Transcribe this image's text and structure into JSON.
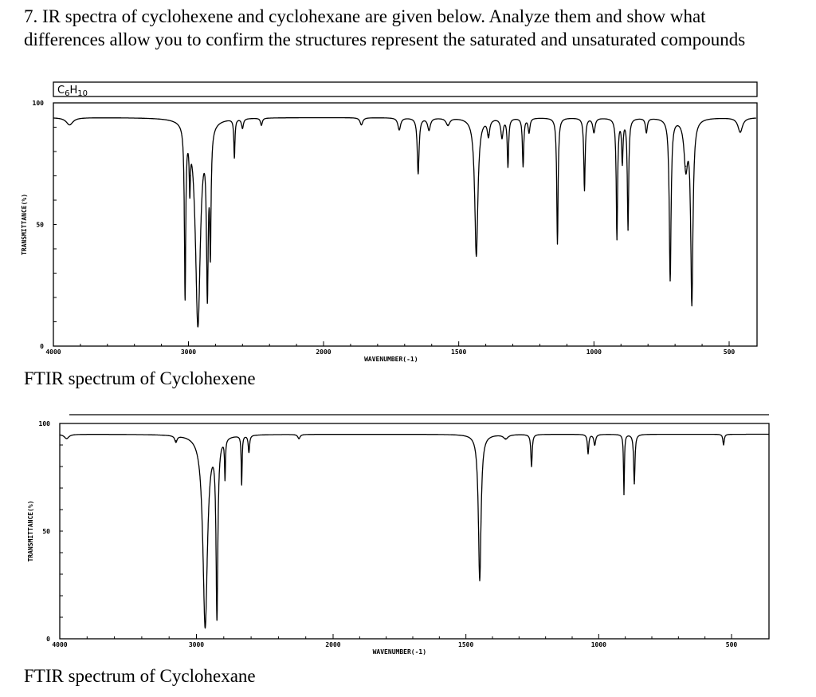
{
  "question": "7.  IR spectra of cyclohexene and cyclohexane are given below. Analyze them and show what differences allow you to confirm the structures represent the saturated and unsaturated compounds",
  "chart_data": [
    {
      "type": "line",
      "id": "cyclohexene",
      "title": "C6H10",
      "title_main": "C",
      "title_sub1": "6",
      "title_mid": "H",
      "title_sub2": "10",
      "caption": "FTIR spectrum of Cyclohexene",
      "xlabel": "WAVENUMBER(-1)",
      "ylabel": "TRANSMITTANCE(%)",
      "xlim": [
        4000,
        400
      ],
      "ylim": [
        0,
        100
      ],
      "xticks": [
        "4000",
        "3000",
        "2000",
        "1500",
        "1000",
        "500"
      ],
      "xtick_values": [
        4000,
        3000,
        2000,
        1500,
        1000,
        500
      ],
      "yticks": [
        "100",
        "50",
        "0"
      ],
      "ytick_values": [
        100,
        50,
        0
      ],
      "baseline": 94,
      "peaks": [
        {
          "wn": 3880,
          "T": 91,
          "w": 30
        },
        {
          "wn": 3025,
          "T": 20,
          "w": 6
        },
        {
          "wn": 2990,
          "T": 70,
          "w": 5
        },
        {
          "wn": 2930,
          "T": 8,
          "w": 22
        },
        {
          "wn": 2860,
          "T": 20,
          "w": 8
        },
        {
          "wn": 2838,
          "T": 40,
          "w": 6
        },
        {
          "wn": 2660,
          "T": 78,
          "w": 5
        },
        {
          "wn": 2600,
          "T": 90,
          "w": 8
        },
        {
          "wn": 2460,
          "T": 91,
          "w": 8
        },
        {
          "wn": 1860,
          "T": 91,
          "w": 6
        },
        {
          "wn": 1720,
          "T": 89,
          "w": 6
        },
        {
          "wn": 1650,
          "T": 71,
          "w": 4
        },
        {
          "wn": 1610,
          "T": 89,
          "w": 6
        },
        {
          "wn": 1540,
          "T": 91,
          "w": 8
        },
        {
          "wn": 1435,
          "T": 37,
          "w": 7
        },
        {
          "wn": 1390,
          "T": 87,
          "w": 5
        },
        {
          "wn": 1340,
          "T": 86,
          "w": 5
        },
        {
          "wn": 1318,
          "T": 74,
          "w": 3
        },
        {
          "wn": 1262,
          "T": 74,
          "w": 3
        },
        {
          "wn": 1240,
          "T": 88,
          "w": 4
        },
        {
          "wn": 1135,
          "T": 42,
          "w": 3
        },
        {
          "wn": 1035,
          "T": 64,
          "w": 3
        },
        {
          "wn": 1000,
          "T": 88,
          "w": 5
        },
        {
          "wn": 915,
          "T": 44,
          "w": 3
        },
        {
          "wn": 895,
          "T": 76,
          "w": 3
        },
        {
          "wn": 874,
          "T": 48,
          "w": 3
        },
        {
          "wn": 806,
          "T": 88,
          "w": 4
        },
        {
          "wn": 718,
          "T": 27,
          "w": 4
        },
        {
          "wn": 660,
          "T": 74,
          "w": 8
        },
        {
          "wn": 638,
          "T": 17,
          "w": 5
        },
        {
          "wn": 459,
          "T": 88,
          "w": 10
        }
      ]
    },
    {
      "type": "line",
      "id": "cyclohexane",
      "caption": "FTIR spectrum of Cyclohexane",
      "xlabel": "WAVENUMBER(-1)",
      "ylabel": "TRANSMITTANCE(%)",
      "xlim": [
        4000,
        360
      ],
      "ylim": [
        0,
        100
      ],
      "xticks": [
        "4000",
        "3000",
        "2000",
        "1500",
        "1000",
        "500"
      ],
      "xtick_values": [
        4000,
        3000,
        2000,
        1500,
        1000,
        500
      ],
      "yticks": [
        "100",
        "50",
        "0"
      ],
      "ytick_values": [
        100,
        50,
        0
      ],
      "baseline": 95,
      "peaks": [
        {
          "wn": 3950,
          "T": 93,
          "w": 20
        },
        {
          "wn": 3150,
          "T": 92,
          "w": 10
        },
        {
          "wn": 2936,
          "T": 5,
          "w": 20
        },
        {
          "wn": 2850,
          "T": 9,
          "w": 8
        },
        {
          "wn": 2791,
          "T": 76,
          "w": 4
        },
        {
          "wn": 2669,
          "T": 72,
          "w": 4
        },
        {
          "wn": 2616,
          "T": 87,
          "w": 6
        },
        {
          "wn": 2250,
          "T": 93,
          "w": 10
        },
        {
          "wn": 1448,
          "T": 27,
          "w": 6
        },
        {
          "wn": 1350,
          "T": 93,
          "w": 10
        },
        {
          "wn": 1253,
          "T": 80,
          "w": 3
        },
        {
          "wn": 1040,
          "T": 86,
          "w": 3
        },
        {
          "wn": 1015,
          "T": 90,
          "w": 4
        },
        {
          "wn": 905,
          "T": 67,
          "w": 2
        },
        {
          "wn": 866,
          "T": 72,
          "w": 3
        },
        {
          "wn": 530,
          "T": 90,
          "w": 3
        }
      ]
    }
  ]
}
